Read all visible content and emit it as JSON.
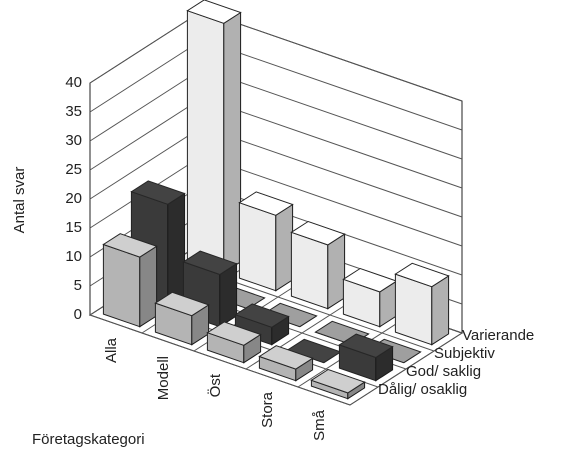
{
  "chart_data": {
    "type": "bar3d",
    "y_label": "Antal svar",
    "x_label": "Företagskategori",
    "categories": [
      "Alla",
      "Modell",
      "Öst",
      "Stora",
      "Små"
    ],
    "series": [
      {
        "name": "Dålig/ osaklig",
        "color": "#b4b4b4",
        "values": [
          12,
          5,
          3,
          2,
          1
        ]
      },
      {
        "name": "God/ saklig",
        "color": "#3a3a3a",
        "values": [
          18,
          9,
          3,
          0,
          4
        ]
      },
      {
        "name": "Subjektiv",
        "color": "#8a8a8a",
        "values": [
          0,
          0,
          0,
          0,
          0
        ]
      },
      {
        "name": "Varierande",
        "color": "#ececec",
        "values": [
          43,
          13,
          11,
          6,
          10
        ]
      }
    ],
    "ylim": [
      0,
      40
    ],
    "yticks": [
      0,
      5,
      10,
      15,
      20,
      25,
      30,
      35,
      40
    ],
    "grid": true
  }
}
